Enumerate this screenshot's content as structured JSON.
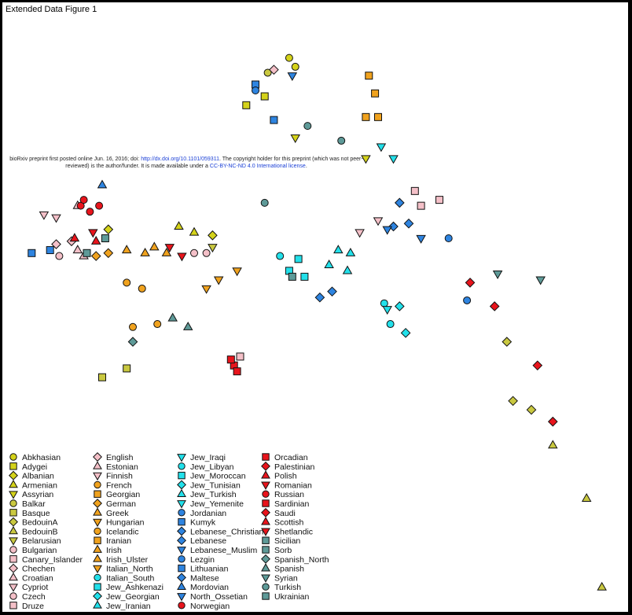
{
  "figure_title": "Extended Data Figure 1",
  "notice": {
    "prefix": "bioRxiv preprint first posted online Jun. 16, 2016; doi: ",
    "doi": "http://dx.doi.org/10.1101/059311",
    "middle": ". The copyright holder for this preprint (which was not peer-reviewed) is the author/funder. It is made available under a ",
    "license": "CC-BY-NC-ND 4.0 International license",
    "suffix": "."
  },
  "colors": {
    "yellow": "#d4d21a",
    "orange": "#f0a21e",
    "pink": "#f4c0c8",
    "teal": "#5e9a98",
    "cyan": "#22e0ea",
    "blue": "#2e84e0",
    "red": "#e8141c",
    "ygreen": "#c9c840"
  },
  "chart_data": {
    "type": "scatter",
    "xlabel": "",
    "ylabel": "",
    "xlim": [
      -1,
      1
    ],
    "ylim": [
      -1,
      1
    ],
    "grid": false,
    "legend_placement": "bottom-left",
    "series": [
      {
        "name": "Abkhasian",
        "shape": "circle",
        "color": "#d4d21a",
        "points": [
          [
            -0.09,
            0.86
          ],
          [
            -0.07,
            0.83
          ]
        ]
      },
      {
        "name": "Adygei",
        "shape": "square",
        "color": "#d4d21a",
        "points": [
          [
            -0.23,
            0.7
          ],
          [
            -0.17,
            0.73
          ]
        ]
      },
      {
        "name": "Albanian",
        "shape": "diamond",
        "color": "#d4d21a",
        "points": [
          [
            -0.68,
            0.28
          ],
          [
            -0.34,
            0.26
          ]
        ]
      },
      {
        "name": "Armenian",
        "shape": "triangle-up",
        "color": "#d4d21a",
        "points": [
          [
            -0.45,
            0.29
          ],
          [
            -0.4,
            0.27
          ]
        ]
      },
      {
        "name": "Assyrian",
        "shape": "triangle-down",
        "color": "#d4d21a",
        "points": [
          [
            -0.07,
            0.59
          ],
          [
            0.16,
            0.52
          ]
        ]
      },
      {
        "name": "Balkar",
        "shape": "circle",
        "color": "#c9c840",
        "points": [
          [
            -0.16,
            0.81
          ]
        ]
      },
      {
        "name": "Basque",
        "shape": "square",
        "color": "#c9c840",
        "points": [
          [
            -0.7,
            -0.22
          ],
          [
            -0.62,
            -0.19
          ]
        ]
      },
      {
        "name": "BedouinA",
        "shape": "diamond",
        "color": "#c9c840",
        "points": [
          [
            0.62,
            -0.1
          ],
          [
            0.7,
            -0.33
          ],
          [
            0.64,
            -0.3
          ]
        ]
      },
      {
        "name": "BedouinB",
        "shape": "triangle-up",
        "color": "#c9c840",
        "points": [
          [
            0.77,
            -0.45
          ],
          [
            0.88,
            -0.63
          ],
          [
            0.93,
            -0.93
          ]
        ]
      },
      {
        "name": "Belarusian",
        "shape": "triangle-down",
        "color": "#c9c840",
        "points": [
          [
            -0.34,
            0.22
          ]
        ]
      },
      {
        "name": "Bulgarian",
        "shape": "circle",
        "color": "#f4c0c8",
        "points": [
          [
            -0.4,
            0.2
          ],
          [
            -0.36,
            0.2
          ]
        ]
      },
      {
        "name": "Canary_Islander",
        "shape": "square",
        "color": "#f4c0c8",
        "points": [
          [
            -0.25,
            -0.15
          ],
          [
            0.32,
            0.41
          ]
        ]
      },
      {
        "name": "Chechen",
        "shape": "diamond",
        "color": "#f4c0c8",
        "points": [
          [
            -0.14,
            0.82
          ]
        ]
      },
      {
        "name": "Croatian",
        "shape": "triangle-up",
        "color": "#f4c0c8",
        "points": [
          [
            -0.78,
            0.21
          ],
          [
            -0.76,
            0.19
          ]
        ]
      },
      {
        "name": "Cypriot",
        "shape": "triangle-down",
        "color": "#f4c0c8",
        "points": [
          [
            0.14,
            0.27
          ],
          [
            0.2,
            0.31
          ]
        ]
      },
      {
        "name": "Czech",
        "shape": "circle",
        "color": "#f4c0c8",
        "points": [
          [
            -0.84,
            0.19
          ]
        ]
      },
      {
        "name": "Druze",
        "shape": "square",
        "color": "#f4c0c8",
        "points": [
          [
            0.4,
            0.38
          ],
          [
            0.34,
            0.36
          ]
        ]
      },
      {
        "name": "English",
        "shape": "diamond",
        "color": "#f4c0c8",
        "points": [
          [
            -0.85,
            0.23
          ],
          [
            -0.8,
            0.24
          ]
        ]
      },
      {
        "name": "Estonian",
        "shape": "triangle-up",
        "color": "#f4c0c8",
        "points": [
          [
            -0.78,
            0.36
          ]
        ]
      },
      {
        "name": "Finnish",
        "shape": "triangle-down",
        "color": "#f4c0c8",
        "points": [
          [
            -0.89,
            0.33
          ],
          [
            -0.85,
            0.32
          ]
        ]
      },
      {
        "name": "French",
        "shape": "circle",
        "color": "#f0a21e",
        "points": [
          [
            -0.62,
            0.1
          ],
          [
            -0.57,
            0.08
          ],
          [
            -0.52,
            -0.04
          ]
        ]
      },
      {
        "name": "Georgian",
        "shape": "square",
        "color": "#f0a21e",
        "points": [
          [
            0.17,
            0.8
          ],
          [
            0.19,
            0.74
          ]
        ]
      },
      {
        "name": "German",
        "shape": "diamond",
        "color": "#f0a21e",
        "points": [
          [
            -0.72,
            0.19
          ],
          [
            -0.68,
            0.2
          ]
        ]
      },
      {
        "name": "Greek",
        "shape": "triangle-up",
        "color": "#f0a21e",
        "points": [
          [
            -0.62,
            0.21
          ],
          [
            -0.56,
            0.2
          ]
        ]
      },
      {
        "name": "Hungarian",
        "shape": "triangle-down",
        "color": "#f0a21e",
        "points": [
          [
            -0.26,
            0.14
          ],
          [
            -0.36,
            0.08
          ]
        ]
      },
      {
        "name": "Icelandic",
        "shape": "circle",
        "color": "#f0a21e",
        "points": [
          [
            -0.6,
            -0.05
          ]
        ]
      },
      {
        "name": "Iranian",
        "shape": "square",
        "color": "#f0a21e",
        "points": [
          [
            0.16,
            0.66
          ],
          [
            0.2,
            0.66
          ]
        ]
      },
      {
        "name": "Irish",
        "shape": "triangle-up",
        "color": "#f0a21e",
        "points": [
          [
            -0.53,
            0.22
          ]
        ]
      },
      {
        "name": "Irish_Ulster",
        "shape": "triangle-up",
        "color": "#f0a21e",
        "points": [
          [
            -0.49,
            0.2
          ]
        ]
      },
      {
        "name": "Italian_North",
        "shape": "triangle-down",
        "color": "#f0a21e",
        "points": [
          [
            -0.32,
            0.11
          ]
        ]
      },
      {
        "name": "Italian_South",
        "shape": "circle",
        "color": "#22e0ea",
        "points": [
          [
            0.24,
            -0.04
          ]
        ]
      },
      {
        "name": "Jew_Ashkenazi",
        "shape": "square",
        "color": "#22e0ea",
        "points": [
          [
            -0.06,
            0.18
          ],
          [
            -0.04,
            0.12
          ]
        ]
      },
      {
        "name": "Jew_Georgian",
        "shape": "diamond",
        "color": "#22e0ea",
        "points": [
          [
            0.29,
            -0.07
          ]
        ]
      },
      {
        "name": "Jew_Iranian",
        "shape": "triangle-up",
        "color": "#22e0ea",
        "points": [
          [
            0.07,
            0.21
          ],
          [
            0.11,
            0.2
          ]
        ]
      },
      {
        "name": "Jew_Iraqi",
        "shape": "triangle-down",
        "color": "#22e0ea",
        "points": [
          [
            0.21,
            0.56
          ],
          [
            0.25,
            0.52
          ]
        ]
      },
      {
        "name": "Jew_Libyan",
        "shape": "circle",
        "color": "#22e0ea",
        "points": [
          [
            -0.12,
            0.19
          ],
          [
            0.22,
            0.03
          ]
        ]
      },
      {
        "name": "Jew_Moroccan",
        "shape": "square",
        "color": "#22e0ea",
        "points": [
          [
            -0.09,
            0.14
          ]
        ]
      },
      {
        "name": "Jew_Tunisian",
        "shape": "diamond",
        "color": "#22e0ea",
        "points": [
          [
            0.27,
            0.02
          ]
        ]
      },
      {
        "name": "Jew_Turkish",
        "shape": "triangle-up",
        "color": "#22e0ea",
        "points": [
          [
            0.04,
            0.16
          ],
          [
            0.1,
            0.14
          ]
        ]
      },
      {
        "name": "Jew_Yemenite",
        "shape": "triangle-down",
        "color": "#22e0ea",
        "points": [
          [
            0.23,
            0.01
          ]
        ]
      },
      {
        "name": "Jordanian",
        "shape": "circle",
        "color": "#2e84e0",
        "points": [
          [
            0.43,
            0.25
          ],
          [
            0.49,
            0.04
          ]
        ]
      },
      {
        "name": "Kumyk",
        "shape": "square",
        "color": "#2e84e0",
        "points": [
          [
            -0.14,
            0.65
          ],
          [
            -0.2,
            0.77
          ]
        ]
      },
      {
        "name": "Lebanese_Christian",
        "shape": "diamond",
        "color": "#2e84e0",
        "points": [
          [
            0.25,
            0.29
          ],
          [
            0.3,
            0.3
          ]
        ]
      },
      {
        "name": "Lebanese",
        "shape": "diamond",
        "color": "#2e84e0",
        "points": [
          [
            0.27,
            0.37
          ]
        ]
      },
      {
        "name": "Lebanese_Muslim",
        "shape": "triangle-down",
        "color": "#2e84e0",
        "points": [
          [
            0.23,
            0.28
          ],
          [
            0.34,
            0.25
          ]
        ]
      },
      {
        "name": "Lezgin",
        "shape": "circle",
        "color": "#2e84e0",
        "points": [
          [
            -0.2,
            0.75
          ]
        ]
      },
      {
        "name": "Lithuanian",
        "shape": "square",
        "color": "#2e84e0",
        "points": [
          [
            -0.93,
            0.2
          ],
          [
            -0.87,
            0.21
          ]
        ]
      },
      {
        "name": "Maltese",
        "shape": "diamond",
        "color": "#2e84e0",
        "points": [
          [
            0.01,
            0.05
          ],
          [
            0.05,
            0.07
          ]
        ]
      },
      {
        "name": "Mordovian",
        "shape": "triangle-up",
        "color": "#2e84e0",
        "points": [
          [
            -0.7,
            0.43
          ]
        ]
      },
      {
        "name": "North_Ossetian",
        "shape": "triangle-down",
        "color": "#2e84e0",
        "points": [
          [
            -0.08,
            0.8
          ]
        ]
      },
      {
        "name": "Norwegian",
        "shape": "circle",
        "color": "#e8141c",
        "points": [
          [
            -0.77,
            0.36
          ],
          [
            -0.74,
            0.34
          ]
        ]
      },
      {
        "name": "Orcadian",
        "shape": "square",
        "color": "#e8141c",
        "points": [
          [
            -0.27,
            -0.18
          ]
        ]
      },
      {
        "name": "Palestinian",
        "shape": "diamond",
        "color": "#e8141c",
        "points": [
          [
            0.5,
            0.1
          ],
          [
            0.58,
            0.02
          ]
        ]
      },
      {
        "name": "Polish",
        "shape": "triangle-up",
        "color": "#e8141c",
        "points": [
          [
            -0.72,
            0.24
          ]
        ]
      },
      {
        "name": "Romanian",
        "shape": "triangle-down",
        "color": "#e8141c",
        "points": [
          [
            -0.48,
            0.22
          ],
          [
            -0.44,
            0.19
          ]
        ]
      },
      {
        "name": "Russian",
        "shape": "circle",
        "color": "#e8141c",
        "points": [
          [
            -0.76,
            0.38
          ],
          [
            -0.71,
            0.36
          ]
        ]
      },
      {
        "name": "Sardinian",
        "shape": "square",
        "color": "#e8141c",
        "points": [
          [
            -0.28,
            -0.16
          ],
          [
            -0.26,
            -0.2
          ]
        ]
      },
      {
        "name": "Saudi",
        "shape": "diamond",
        "color": "#e8141c",
        "points": [
          [
            0.72,
            -0.18
          ],
          [
            0.77,
            -0.37
          ]
        ]
      },
      {
        "name": "Scottish",
        "shape": "triangle-up",
        "color": "#e8141c",
        "points": [
          [
            -0.79,
            0.25
          ]
        ]
      },
      {
        "name": "Shetlandic",
        "shape": "triangle-down",
        "color": "#e8141c",
        "points": [
          [
            -0.73,
            0.27
          ]
        ]
      },
      {
        "name": "Sicilian",
        "shape": "square",
        "color": "#5e9a98",
        "points": [
          [
            -0.08,
            0.12
          ]
        ]
      },
      {
        "name": "Sorb",
        "shape": "square",
        "color": "#5e9a98",
        "points": [
          [
            -0.75,
            0.2
          ]
        ]
      },
      {
        "name": "Spanish_North",
        "shape": "diamond",
        "color": "#5e9a98",
        "points": [
          [
            -0.6,
            -0.1
          ]
        ]
      },
      {
        "name": "Spanish",
        "shape": "triangle-up",
        "color": "#5e9a98",
        "points": [
          [
            -0.47,
            -0.02
          ],
          [
            -0.42,
            -0.05
          ]
        ]
      },
      {
        "name": "Syrian",
        "shape": "triangle-down",
        "color": "#5e9a98",
        "points": [
          [
            0.59,
            0.13
          ],
          [
            0.73,
            0.11
          ]
        ]
      },
      {
        "name": "Turkish",
        "shape": "circle",
        "color": "#5e9a98",
        "points": [
          [
            -0.03,
            0.63
          ],
          [
            0.08,
            0.58
          ],
          [
            -0.17,
            0.37
          ]
        ]
      },
      {
        "name": "Ukrainian",
        "shape": "square",
        "color": "#5e9a98",
        "points": [
          [
            -0.69,
            0.25
          ]
        ]
      }
    ]
  }
}
